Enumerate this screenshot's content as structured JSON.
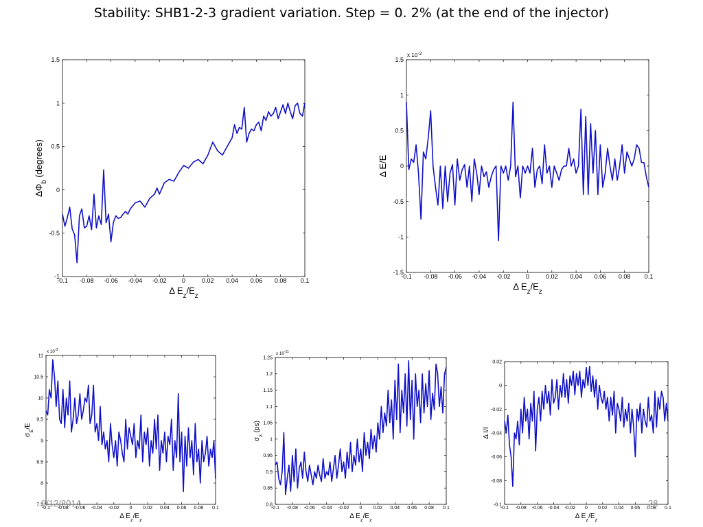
{
  "slide": {
    "title": "Stability: SHB1-2-3 gradient variation. Step = 0. 2% (at the end of the injector)",
    "footer_date": "9/12/2014",
    "page_number": "28"
  },
  "colors": {
    "line": "#1010c8",
    "axis": "#000000"
  },
  "chart_data": [
    {
      "type": "line",
      "xlabel": "Δ E_z/E_z",
      "ylabel": "ΔΦ_b (degrees)",
      "xlim": [
        -0.1,
        0.1
      ],
      "ylim": [
        -1,
        1.5
      ],
      "xticks": [
        -0.1,
        -0.08,
        -0.06,
        -0.04,
        -0.02,
        0,
        0.02,
        0.04,
        0.06,
        0.08,
        0.1
      ],
      "xticklabels": [
        "-0.1",
        "-0.08",
        "-0.06",
        "-0.04",
        "-0.02",
        "0",
        "0.02",
        "0.04",
        "0.06",
        "0.08",
        "0.1"
      ],
      "yticks": [
        -1,
        -0.5,
        0,
        0.5,
        1,
        1.5
      ],
      "yticklabels": [
        "-1",
        "-0.5",
        "0",
        "0.5",
        "1",
        "1.5"
      ],
      "grid": false,
      "x": [
        -0.1,
        -0.098,
        -0.096,
        -0.094,
        -0.092,
        -0.09,
        -0.088,
        -0.086,
        -0.084,
        -0.082,
        -0.08,
        -0.078,
        -0.076,
        -0.074,
        -0.072,
        -0.07,
        -0.068,
        -0.066,
        -0.064,
        -0.062,
        -0.06,
        -0.058,
        -0.056,
        -0.054,
        -0.052,
        -0.05,
        -0.048,
        -0.046,
        -0.044,
        -0.04,
        -0.036,
        -0.032,
        -0.028,
        -0.024,
        -0.022,
        -0.02,
        -0.016,
        -0.012,
        -0.008,
        -0.004,
        0,
        0.004,
        0.008,
        0.012,
        0.016,
        0.02,
        0.024,
        0.028,
        0.032,
        0.036,
        0.04,
        0.042,
        0.044,
        0.046,
        0.048,
        0.05,
        0.052,
        0.054,
        0.056,
        0.058,
        0.06,
        0.062,
        0.064,
        0.066,
        0.068,
        0.07,
        0.072,
        0.074,
        0.076,
        0.078,
        0.08,
        0.082,
        0.084,
        0.086,
        0.088,
        0.09,
        0.092,
        0.094,
        0.096,
        0.098,
        0.1
      ],
      "y": [
        -0.28,
        -0.42,
        -0.32,
        -0.2,
        -0.45,
        -0.52,
        -0.84,
        -0.3,
        -0.22,
        -0.44,
        -0.42,
        -0.3,
        -0.46,
        -0.05,
        -0.44,
        -0.3,
        -0.4,
        0.23,
        -0.38,
        -0.28,
        -0.6,
        -0.38,
        -0.3,
        -0.33,
        -0.32,
        -0.28,
        -0.25,
        -0.28,
        -0.22,
        -0.15,
        -0.13,
        -0.2,
        -0.1,
        -0.05,
        0.02,
        -0.05,
        0.08,
        0.12,
        0.1,
        0.2,
        0.28,
        0.25,
        0.32,
        0.35,
        0.3,
        0.4,
        0.55,
        0.45,
        0.4,
        0.5,
        0.6,
        0.75,
        0.65,
        0.72,
        0.7,
        0.95,
        0.55,
        0.65,
        0.7,
        0.68,
        0.75,
        0.78,
        0.68,
        0.85,
        0.8,
        0.9,
        0.85,
        0.88,
        0.95,
        0.82,
        0.9,
        0.98,
        0.88,
        1.0,
        0.9,
        0.82,
        0.97,
        1.0,
        0.88,
        0.85,
        1.0
      ]
    },
    {
      "type": "line",
      "xlabel": "Δ E_z/E_z",
      "ylabel": "Δ E/E",
      "exponent": "x 10^-3",
      "xlim": [
        -0.1,
        0.1
      ],
      "ylim": [
        -1.5,
        1.5
      ],
      "xticks": [
        -0.1,
        -0.08,
        -0.06,
        -0.04,
        -0.02,
        0,
        0.02,
        0.04,
        0.06,
        0.08,
        0.1
      ],
      "xticklabels": [
        "-0.1",
        "-0.08",
        "-0.06",
        "-0.04",
        "-0.02",
        "0",
        "0.02",
        "0.04",
        "0.06",
        "0.08",
        "0.1"
      ],
      "yticks": [
        -1.5,
        -1,
        -0.5,
        0,
        0.5,
        1,
        1.5
      ],
      "yticklabels": [
        "-1.5",
        "-1",
        "-0.5",
        "0",
        "0.5",
        "1",
        "1.5"
      ],
      "grid": false,
      "x": [
        -0.1,
        -0.098,
        -0.096,
        -0.094,
        -0.092,
        -0.09,
        -0.088,
        -0.086,
        -0.084,
        -0.082,
        -0.08,
        -0.078,
        -0.076,
        -0.074,
        -0.072,
        -0.07,
        -0.068,
        -0.066,
        -0.064,
        -0.062,
        -0.06,
        -0.058,
        -0.056,
        -0.054,
        -0.052,
        -0.05,
        -0.048,
        -0.046,
        -0.044,
        -0.042,
        -0.04,
        -0.038,
        -0.036,
        -0.034,
        -0.032,
        -0.03,
        -0.028,
        -0.026,
        -0.024,
        -0.022,
        -0.02,
        -0.018,
        -0.016,
        -0.014,
        -0.012,
        -0.01,
        -0.008,
        -0.006,
        -0.004,
        -0.002,
        0,
        0.002,
        0.004,
        0.006,
        0.008,
        0.01,
        0.012,
        0.014,
        0.016,
        0.018,
        0.02,
        0.022,
        0.024,
        0.026,
        0.028,
        0.03,
        0.032,
        0.034,
        0.036,
        0.038,
        0.04,
        0.042,
        0.044,
        0.046,
        0.048,
        0.05,
        0.052,
        0.054,
        0.056,
        0.058,
        0.06,
        0.062,
        0.064,
        0.066,
        0.068,
        0.07,
        0.072,
        0.074,
        0.076,
        0.078,
        0.08,
        0.082,
        0.084,
        0.086,
        0.088,
        0.09,
        0.092,
        0.094,
        0.096,
        0.098,
        0.1
      ],
      "y": [
        0.9,
        -0.05,
        0.1,
        0.05,
        0.3,
        -0.1,
        -0.75,
        0.2,
        0.1,
        0.4,
        0.78,
        0.0,
        -0.3,
        -0.55,
        0.0,
        -0.6,
        0.0,
        -0.5,
        -0.1,
        0.02,
        -0.55,
        0.1,
        -0.2,
        -0.05,
        0.02,
        -0.3,
        0.0,
        -0.5,
        0.1,
        -0.1,
        -0.4,
        0.0,
        -0.15,
        -0.08,
        -0.3,
        -0.15,
        -0.05,
        0.0,
        -1.05,
        0.0,
        -0.1,
        0.0,
        -0.2,
        0.0,
        0.9,
        -0.15,
        0.0,
        -0.45,
        0.0,
        -0.1,
        0.0,
        -0.1,
        0.25,
        -0.3,
        -0.05,
        0.0,
        -0.25,
        0.3,
        -0.1,
        0.0,
        -0.3,
        0.0,
        -0.1,
        -0.2,
        -0.05,
        0.0,
        0.0,
        0.25,
        0.0,
        0.1,
        -0.1,
        0.0,
        0.8,
        -0.4,
        0.7,
        -0.4,
        0.6,
        -0.1,
        0.5,
        -0.4,
        0.3,
        -0.3,
        -0.1,
        0.25,
        0.0,
        -0.2,
        0.1,
        -0.2,
        0.0,
        0.3,
        -0.1,
        0.2,
        0.1,
        0.0,
        0.1,
        0.3,
        0.25,
        0.05,
        0.05,
        -0.15,
        -0.3
      ]
    },
    {
      "type": "line",
      "xlabel": "Δ E_z/E_z",
      "ylabel": "σ_E/E",
      "exponent": "x 10^-3",
      "xlim": [
        -0.1,
        0.1
      ],
      "ylim": [
        7.5,
        11
      ],
      "xticks": [
        -0.1,
        -0.08,
        -0.06,
        -0.04,
        -0.02,
        0,
        0.02,
        0.04,
        0.06,
        0.08,
        0.1
      ],
      "xticklabels": [
        "-0.1",
        "-0.08",
        "-0.06",
        "-0.04",
        "-0.02",
        "0",
        "0.02",
        "0.04",
        "0.06",
        "0.08",
        "0.1"
      ],
      "yticks": [
        7.5,
        8,
        8.5,
        9,
        9.5,
        10,
        10.5,
        11
      ],
      "yticklabels": [
        "7.5",
        "8",
        "8.5",
        "9",
        "9.5",
        "10",
        "10.5",
        "11"
      ],
      "grid": false,
      "x": [
        -0.1,
        -0.098,
        -0.096,
        -0.094,
        -0.092,
        -0.09,
        -0.088,
        -0.086,
        -0.084,
        -0.082,
        -0.08,
        -0.078,
        -0.076,
        -0.074,
        -0.072,
        -0.07,
        -0.068,
        -0.066,
        -0.064,
        -0.062,
        -0.06,
        -0.058,
        -0.056,
        -0.054,
        -0.052,
        -0.05,
        -0.048,
        -0.046,
        -0.044,
        -0.042,
        -0.04,
        -0.038,
        -0.036,
        -0.034,
        -0.032,
        -0.03,
        -0.028,
        -0.026,
        -0.024,
        -0.022,
        -0.02,
        -0.018,
        -0.016,
        -0.014,
        -0.012,
        -0.01,
        -0.008,
        -0.006,
        -0.004,
        -0.002,
        0,
        0.002,
        0.004,
        0.006,
        0.008,
        0.01,
        0.012,
        0.014,
        0.016,
        0.018,
        0.02,
        0.022,
        0.024,
        0.026,
        0.028,
        0.03,
        0.032,
        0.034,
        0.036,
        0.038,
        0.04,
        0.042,
        0.044,
        0.046,
        0.048,
        0.05,
        0.052,
        0.054,
        0.056,
        0.058,
        0.06,
        0.062,
        0.064,
        0.066,
        0.068,
        0.07,
        0.072,
        0.074,
        0.076,
        0.078,
        0.08,
        0.082,
        0.084,
        0.086,
        0.088,
        0.09,
        0.092,
        0.094,
        0.096,
        0.098,
        0.1
      ],
      "y": [
        9.7,
        9.6,
        10.2,
        10.0,
        10.9,
        10.5,
        9.8,
        10.4,
        9.5,
        9.4,
        10.2,
        9.3,
        10.0,
        9.6,
        10.4,
        9.2,
        9.5,
        10.0,
        9.4,
        9.6,
        10.1,
        9.5,
        9.7,
        10.0,
        9.9,
        10.3,
        9.4,
        9.6,
        10.3,
        9.2,
        9.4,
        9.0,
        9.8,
        8.9,
        9.2,
        8.8,
        9.0,
        8.5,
        9.4,
        8.9,
        8.6,
        9.0,
        8.4,
        9.2,
        9.0,
        8.7,
        8.5,
        9.5,
        8.8,
        9.3,
        9.1,
        8.9,
        9.4,
        8.6,
        9.0,
        8.8,
        9.6,
        8.5,
        9.2,
        8.9,
        9.3,
        8.4,
        9.0,
        8.7,
        9.5,
        8.8,
        9.6,
        8.3,
        9.0,
        8.7,
        9.2,
        8.5,
        9.1,
        8.9,
        9.5,
        8.3,
        9.0,
        8.6,
        10.1,
        8.5,
        9.2,
        7.8,
        9.1,
        8.4,
        9.3,
        8.6,
        9.0,
        8.2,
        9.4,
        8.5,
        8.8,
        8.0,
        9.0,
        8.5,
        8.7,
        9.1,
        8.4,
        8.8,
        8.6,
        9.0,
        8.1
      ]
    },
    {
      "type": "line",
      "xlabel": "Δ E_z/E_z",
      "ylabel": "σ_z (ps)",
      "exponent": "x 10^-11",
      "xlim": [
        -0.1,
        0.1
      ],
      "ylim": [
        0.8,
        1.25
      ],
      "xticks": [
        -0.1,
        -0.08,
        -0.06,
        -0.04,
        -0.02,
        0,
        0.02,
        0.04,
        0.06,
        0.08,
        0.1
      ],
      "xticklabels": [
        "-0.1",
        "-0.08",
        "-0.06",
        "-0.04",
        "-0.02",
        "0",
        "0.02",
        "0.04",
        "0.06",
        "0.08",
        "0.1"
      ],
      "yticks": [
        0.8,
        0.85,
        0.9,
        0.95,
        1,
        1.05,
        1.1,
        1.15,
        1.2,
        1.25
      ],
      "yticklabels": [
        "0.8",
        "0.85",
        "0.9",
        "0.95",
        "1",
        "1.05",
        "1.1",
        "1.15",
        "1.2",
        "1.25"
      ],
      "grid": false,
      "x": [
        -0.1,
        -0.098,
        -0.096,
        -0.094,
        -0.092,
        -0.09,
        -0.088,
        -0.086,
        -0.084,
        -0.082,
        -0.08,
        -0.078,
        -0.076,
        -0.074,
        -0.072,
        -0.07,
        -0.068,
        -0.066,
        -0.064,
        -0.062,
        -0.06,
        -0.058,
        -0.056,
        -0.054,
        -0.052,
        -0.05,
        -0.048,
        -0.046,
        -0.044,
        -0.042,
        -0.04,
        -0.038,
        -0.036,
        -0.034,
        -0.032,
        -0.03,
        -0.028,
        -0.026,
        -0.024,
        -0.022,
        -0.02,
        -0.018,
        -0.016,
        -0.014,
        -0.012,
        -0.01,
        -0.008,
        -0.006,
        -0.004,
        -0.002,
        0,
        0.002,
        0.004,
        0.006,
        0.008,
        0.01,
        0.012,
        0.014,
        0.016,
        0.018,
        0.02,
        0.022,
        0.024,
        0.026,
        0.028,
        0.03,
        0.032,
        0.034,
        0.036,
        0.038,
        0.04,
        0.042,
        0.044,
        0.046,
        0.048,
        0.05,
        0.052,
        0.054,
        0.056,
        0.058,
        0.06,
        0.062,
        0.064,
        0.066,
        0.068,
        0.07,
        0.072,
        0.074,
        0.076,
        0.078,
        0.08,
        0.082,
        0.084,
        0.086,
        0.088,
        0.09,
        0.092,
        0.094,
        0.096,
        0.098,
        0.1
      ],
      "y": [
        0.92,
        0.93,
        0.88,
        0.86,
        0.9,
        1.02,
        0.83,
        0.88,
        0.92,
        0.84,
        0.95,
        0.87,
        0.97,
        0.85,
        0.91,
        0.93,
        0.88,
        0.96,
        0.9,
        0.87,
        0.92,
        0.89,
        0.86,
        0.9,
        0.88,
        0.92,
        0.89,
        0.87,
        0.94,
        0.88,
        0.9,
        0.89,
        0.93,
        0.87,
        0.91,
        0.95,
        0.88,
        0.92,
        0.97,
        0.9,
        0.93,
        0.88,
        0.96,
        0.91,
        0.99,
        0.9,
        0.95,
        0.92,
        1.0,
        0.93,
        0.97,
        0.9,
        1.02,
        0.95,
        0.99,
        0.94,
        1.03,
        0.97,
        1.01,
        0.96,
        1.05,
        1.0,
        1.1,
        1.02,
        1.08,
        1.04,
        1.15,
        1.05,
        1.12,
        1.0,
        1.18,
        1.06,
        1.23,
        1.02,
        1.15,
        1.08,
        1.2,
        1.04,
        1.24,
        1.06,
        1.18,
        1.0,
        1.2,
        1.1,
        1.15,
        1.05,
        1.2,
        1.08,
        1.17,
        1.1,
        1.21,
        1.06,
        1.14,
        1.09,
        1.23,
        1.2,
        1.1,
        1.16,
        1.08,
        1.2,
        1.22
      ]
    },
    {
      "type": "line",
      "xlabel": "Δ E_z/E_z",
      "ylabel": "Δ I/I",
      "xlim": [
        -0.1,
        0.1
      ],
      "ylim": [
        -0.1,
        0.02
      ],
      "xticks": [
        -0.1,
        -0.08,
        -0.06,
        -0.04,
        -0.02,
        0,
        0.02,
        0.04,
        0.06,
        0.08,
        0.1
      ],
      "xticklabels": [
        "-0.1",
        "-0.08",
        "-0.06",
        "-0.04",
        "-0.02",
        "0",
        "0.02",
        "0.04",
        "0.06",
        "0.08",
        "0.1"
      ],
      "yticks": [
        -0.1,
        -0.08,
        -0.06,
        -0.04,
        -0.02,
        0,
        0.02
      ],
      "yticklabels": [
        "-0.1",
        "-0.08",
        "-0.06",
        "-0.04",
        "-0.02",
        "0",
        "0.02"
      ],
      "grid": false,
      "x": [
        -0.1,
        -0.098,
        -0.096,
        -0.094,
        -0.092,
        -0.09,
        -0.088,
        -0.086,
        -0.084,
        -0.082,
        -0.08,
        -0.078,
        -0.076,
        -0.074,
        -0.072,
        -0.07,
        -0.068,
        -0.066,
        -0.064,
        -0.062,
        -0.06,
        -0.058,
        -0.056,
        -0.054,
        -0.052,
        -0.05,
        -0.048,
        -0.046,
        -0.044,
        -0.042,
        -0.04,
        -0.038,
        -0.036,
        -0.034,
        -0.032,
        -0.03,
        -0.028,
        -0.026,
        -0.024,
        -0.022,
        -0.02,
        -0.018,
        -0.016,
        -0.014,
        -0.012,
        -0.01,
        -0.008,
        -0.006,
        -0.004,
        -0.002,
        0,
        0.002,
        0.004,
        0.006,
        0.008,
        0.01,
        0.012,
        0.014,
        0.016,
        0.018,
        0.02,
        0.022,
        0.024,
        0.026,
        0.028,
        0.03,
        0.032,
        0.034,
        0.036,
        0.038,
        0.04,
        0.042,
        0.044,
        0.046,
        0.048,
        0.05,
        0.052,
        0.054,
        0.056,
        0.058,
        0.06,
        0.062,
        0.064,
        0.066,
        0.068,
        0.07,
        0.072,
        0.074,
        0.076,
        0.078,
        0.08,
        0.082,
        0.084,
        0.086,
        0.088,
        0.09,
        0.092,
        0.094,
        0.096,
        0.098,
        0.1
      ],
      "y": [
        -0.03,
        -0.04,
        -0.025,
        -0.05,
        -0.06,
        -0.085,
        -0.04,
        -0.045,
        -0.03,
        -0.05,
        -0.02,
        -0.04,
        -0.01,
        -0.03,
        -0.02,
        -0.045,
        -0.015,
        -0.03,
        -0.005,
        -0.055,
        -0.02,
        -0.01,
        -0.03,
        -0.005,
        -0.02,
        0.0,
        -0.015,
        -0.005,
        -0.025,
        0.005,
        -0.015,
        -0.01,
        0.005,
        -0.02,
        0.0,
        -0.01,
        0.01,
        -0.01,
        0.005,
        -0.015,
        0.008,
        0.0,
        0.012,
        -0.008,
        0.01,
        0.0,
        0.012,
        -0.01,
        0.005,
        -0.002,
        0.015,
        0.0,
        0.016,
        -0.005,
        0.008,
        -0.01,
        0.005,
        -0.02,
        0.0,
        -0.01,
        -0.015,
        -0.005,
        -0.02,
        -0.01,
        -0.03,
        -0.01,
        -0.025,
        -0.005,
        -0.04,
        -0.015,
        -0.02,
        -0.03,
        -0.01,
        -0.035,
        -0.02,
        -0.03,
        -0.015,
        -0.04,
        -0.02,
        -0.035,
        -0.06,
        -0.02,
        -0.03,
        -0.015,
        -0.04,
        -0.02,
        -0.03,
        -0.035,
        -0.01,
        -0.03,
        -0.025,
        -0.04,
        -0.005,
        -0.035,
        -0.01,
        -0.02,
        -0.005,
        -0.01,
        -0.03,
        -0.015,
        -0.03
      ]
    }
  ]
}
